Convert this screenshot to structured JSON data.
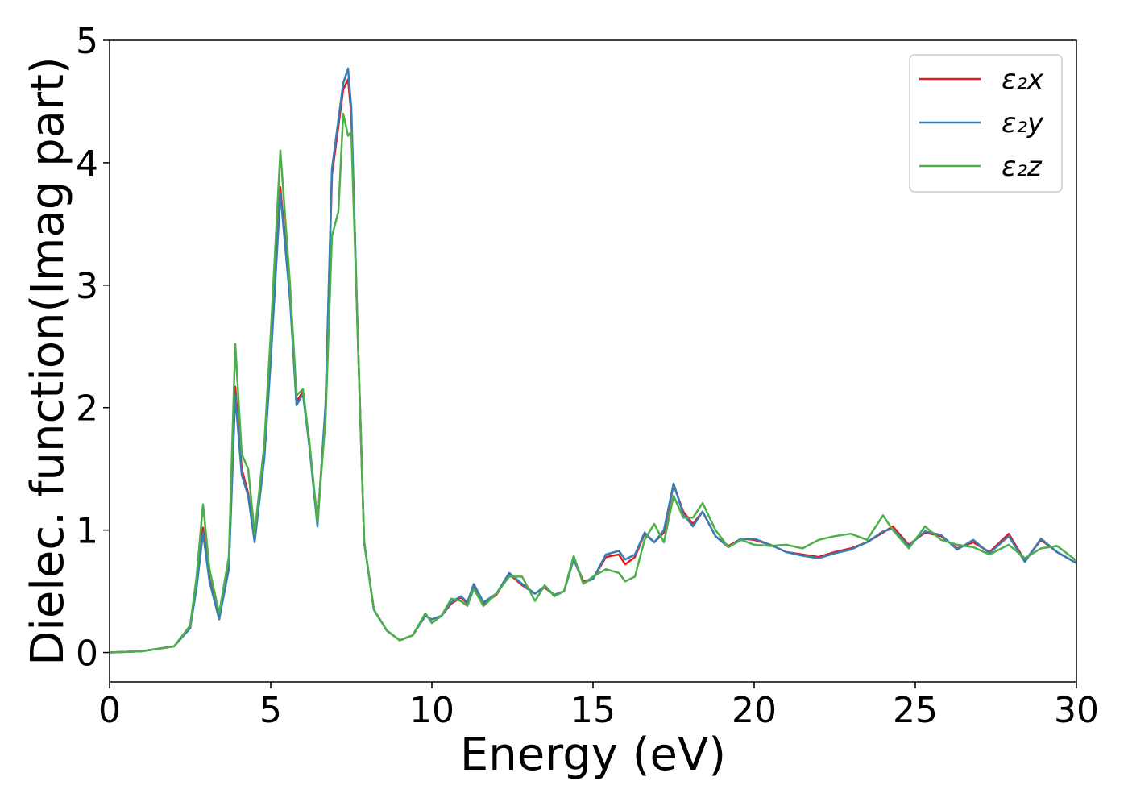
{
  "chart_data": {
    "type": "line",
    "xlabel": "Energy (eV)",
    "ylabel": "Dielec. function(Imag part)",
    "x": [
      0,
      1,
      2,
      2.5,
      2.7,
      2.9,
      3.1,
      3.4,
      3.7,
      3.9,
      4.1,
      4.3,
      4.5,
      4.8,
      5.0,
      5.3,
      5.6,
      5.8,
      6.0,
      6.2,
      6.45,
      6.7,
      6.9,
      7.1,
      7.25,
      7.4,
      7.5,
      7.7,
      7.9,
      8.2,
      8.6,
      9.0,
      9.4,
      9.8,
      10.0,
      10.3,
      10.6,
      10.9,
      11.1,
      11.3,
      11.6,
      12.0,
      12.4,
      12.8,
      13.2,
      13.5,
      13.8,
      14.1,
      14.4,
      14.7,
      15.0,
      15.4,
      15.8,
      16.0,
      16.3,
      16.6,
      16.9,
      17.2,
      17.5,
      17.8,
      18.1,
      18.4,
      18.8,
      19.2,
      19.6,
      20.0,
      20.5,
      21.0,
      21.5,
      22.0,
      22.5,
      23.0,
      23.5,
      24.0,
      24.3,
      24.8,
      25.3,
      25.8,
      26.3,
      26.8,
      27.3,
      27.9,
      28.4,
      28.9,
      29.4,
      30.0
    ],
    "series": [
      {
        "name": "ε₂x",
        "color": "#e41a1c",
        "values": [
          0,
          0.01,
          0.05,
          0.2,
          0.55,
          1.02,
          0.6,
          0.28,
          0.7,
          2.17,
          1.5,
          1.3,
          0.92,
          1.6,
          2.4,
          3.8,
          2.9,
          2.05,
          2.13,
          1.7,
          1.05,
          2.0,
          3.9,
          4.3,
          4.6,
          4.68,
          4.4,
          2.6,
          0.9,
          0.35,
          0.18,
          0.1,
          0.14,
          0.3,
          0.27,
          0.3,
          0.4,
          0.45,
          0.4,
          0.55,
          0.4,
          0.47,
          0.64,
          0.55,
          0.48,
          0.53,
          0.47,
          0.5,
          0.77,
          0.58,
          0.6,
          0.78,
          0.8,
          0.72,
          0.78,
          0.97,
          0.9,
          0.98,
          1.37,
          1.15,
          1.05,
          1.15,
          0.95,
          0.87,
          0.93,
          0.92,
          0.88,
          0.82,
          0.8,
          0.78,
          0.82,
          0.85,
          0.9,
          0.98,
          1.03,
          0.88,
          0.98,
          0.95,
          0.85,
          0.9,
          0.82,
          0.97,
          0.75,
          0.92,
          0.82,
          0.73
        ]
      },
      {
        "name": "ε₂y",
        "color": "#377eb8",
        "values": [
          0,
          0.01,
          0.05,
          0.2,
          0.53,
          0.98,
          0.58,
          0.27,
          0.68,
          2.1,
          1.45,
          1.28,
          0.9,
          1.58,
          2.38,
          3.75,
          2.88,
          2.02,
          2.11,
          1.68,
          1.03,
          2.02,
          3.95,
          4.35,
          4.65,
          4.77,
          4.45,
          2.6,
          0.9,
          0.35,
          0.18,
          0.1,
          0.14,
          0.3,
          0.27,
          0.3,
          0.41,
          0.46,
          0.41,
          0.56,
          0.41,
          0.48,
          0.65,
          0.56,
          0.48,
          0.54,
          0.47,
          0.5,
          0.76,
          0.57,
          0.6,
          0.8,
          0.83,
          0.76,
          0.8,
          0.98,
          0.9,
          1.0,
          1.38,
          1.13,
          1.03,
          1.15,
          0.95,
          0.86,
          0.93,
          0.93,
          0.88,
          0.82,
          0.79,
          0.77,
          0.81,
          0.84,
          0.9,
          0.99,
          1.01,
          0.87,
          0.99,
          0.96,
          0.84,
          0.92,
          0.81,
          0.95,
          0.74,
          0.93,
          0.82,
          0.73
        ]
      },
      {
        "name": "ε₂z",
        "color": "#4daf4a",
        "values": [
          0,
          0.01,
          0.05,
          0.22,
          0.62,
          1.21,
          0.68,
          0.32,
          0.78,
          2.52,
          1.62,
          1.5,
          0.97,
          1.7,
          2.6,
          4.1,
          3.0,
          2.1,
          2.15,
          1.72,
          1.07,
          1.9,
          3.4,
          3.6,
          4.4,
          4.22,
          4.25,
          2.6,
          0.9,
          0.35,
          0.18,
          0.1,
          0.14,
          0.32,
          0.24,
          0.3,
          0.44,
          0.42,
          0.38,
          0.52,
          0.38,
          0.48,
          0.62,
          0.62,
          0.42,
          0.55,
          0.46,
          0.5,
          0.79,
          0.56,
          0.62,
          0.68,
          0.65,
          0.58,
          0.62,
          0.92,
          1.05,
          0.9,
          1.28,
          1.1,
          1.1,
          1.22,
          1.0,
          0.86,
          0.92,
          0.88,
          0.87,
          0.88,
          0.85,
          0.92,
          0.95,
          0.97,
          0.92,
          1.12,
          1.0,
          0.85,
          1.03,
          0.92,
          0.88,
          0.86,
          0.8,
          0.88,
          0.77,
          0.85,
          0.87,
          0.75
        ]
      }
    ],
    "xlim": [
      0,
      30
    ],
    "xticks": [
      0,
      5,
      10,
      15,
      20,
      25,
      30
    ],
    "ylim": [
      -0.24,
      5
    ],
    "yticks": [
      0,
      1,
      2,
      3,
      4,
      5
    ],
    "legend": "upper right"
  }
}
